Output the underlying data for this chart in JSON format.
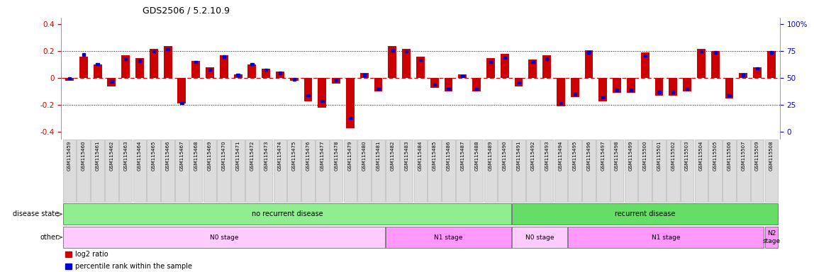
{
  "title": "GDS2506 / 5.2.10.9",
  "samples": [
    "GSM115459",
    "GSM115460",
    "GSM115461",
    "GSM115462",
    "GSM115463",
    "GSM115464",
    "GSM115465",
    "GSM115466",
    "GSM115467",
    "GSM115468",
    "GSM115469",
    "GSM115470",
    "GSM115471",
    "GSM115472",
    "GSM115473",
    "GSM115474",
    "GSM115475",
    "GSM115476",
    "GSM115477",
    "GSM115478",
    "GSM115479",
    "GSM115480",
    "GSM115481",
    "GSM115482",
    "GSM115483",
    "GSM115484",
    "GSM115485",
    "GSM115486",
    "GSM115487",
    "GSM115488",
    "GSM115489",
    "GSM115490",
    "GSM115491",
    "GSM115492",
    "GSM115493",
    "GSM115494",
    "GSM115495",
    "GSM115496",
    "GSM115497",
    "GSM115498",
    "GSM115499",
    "GSM115500",
    "GSM115501",
    "GSM115502",
    "GSM115503",
    "GSM115504",
    "GSM115505",
    "GSM115506",
    "GSM115507",
    "GSM115509",
    "GSM115508"
  ],
  "log2_ratio": [
    -0.02,
    0.16,
    0.1,
    -0.06,
    0.17,
    0.15,
    0.22,
    0.24,
    -0.19,
    0.13,
    0.08,
    0.17,
    0.03,
    0.1,
    0.07,
    0.05,
    -0.02,
    -0.17,
    -0.22,
    -0.04,
    -0.37,
    0.04,
    -0.1,
    0.24,
    0.22,
    0.16,
    -0.07,
    -0.1,
    0.03,
    -0.1,
    0.15,
    0.18,
    -0.06,
    0.14,
    0.17,
    -0.21,
    -0.14,
    0.21,
    -0.17,
    -0.11,
    -0.11,
    0.19,
    -0.13,
    -0.13,
    -0.1,
    0.22,
    0.2,
    -0.15,
    0.04,
    0.08,
    0.2
  ],
  "percentile": [
    50,
    72,
    63,
    47,
    68,
    66,
    75,
    77,
    27,
    65,
    58,
    70,
    53,
    63,
    58,
    55,
    49,
    34,
    29,
    48,
    13,
    53,
    40,
    76,
    75,
    67,
    44,
    40,
    52,
    40,
    65,
    69,
    46,
    65,
    68,
    27,
    35,
    74,
    32,
    39,
    39,
    71,
    37,
    37,
    40,
    75,
    74,
    34,
    53,
    59,
    74
  ],
  "disease_spans": [
    {
      "label": "no recurrent disease",
      "start": 0,
      "end": 32,
      "color": "#90EE90"
    },
    {
      "label": "recurrent disease",
      "start": 32,
      "end": 51,
      "color": "#66DD66"
    }
  ],
  "other_spans": [
    {
      "label": "N0 stage",
      "start": 0,
      "end": 23,
      "color": "#FFCCFF"
    },
    {
      "label": "N1 stage",
      "start": 23,
      "end": 32,
      "color": "#FF99FF"
    },
    {
      "label": "N0 stage",
      "start": 32,
      "end": 36,
      "color": "#FFCCFF"
    },
    {
      "label": "N1 stage",
      "start": 36,
      "end": 50,
      "color": "#FF99FF"
    },
    {
      "label": "N2\nstage",
      "start": 50,
      "end": 51,
      "color": "#FF99FF"
    }
  ],
  "ylim": [
    -0.45,
    0.45
  ],
  "yticks_left": [
    -0.4,
    -0.2,
    0.0,
    0.2,
    0.4
  ],
  "ytick_labels_left": [
    "-0.4",
    "-0.2",
    "0",
    "0.2",
    "0.4"
  ],
  "yticks_right_pct": [
    0,
    25,
    50,
    75,
    100
  ],
  "bar_color": "#CC0000",
  "dot_color": "#0000CC",
  "legend_red": "log2 ratio",
  "legend_blue": "percentile rank within the sample"
}
